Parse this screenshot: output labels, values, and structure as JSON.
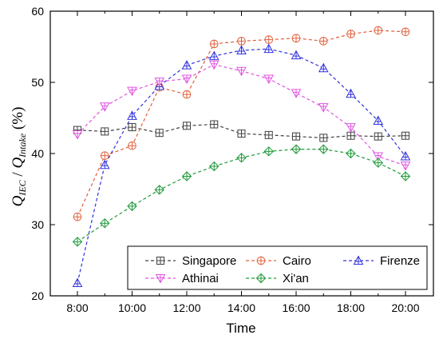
{
  "chart_data": {
    "type": "line",
    "xlabel": "Time",
    "ylabel": {
      "q1": "Q",
      "sub1": "IEC",
      "slash": " / ",
      "q2": "Q",
      "sub2": "Intake",
      "unit": " (%)"
    },
    "x": [
      "8:00",
      "9:00",
      "10:00",
      "11:00",
      "12:00",
      "13:00",
      "14:00",
      "15:00",
      "16:00",
      "17:00",
      "18:00",
      "19:00",
      "20:00"
    ],
    "x_ticks": [
      "8:00",
      "10:00",
      "12:00",
      "14:00",
      "16:00",
      "18:00",
      "20:00"
    ],
    "y_ticks": [
      "20",
      "30",
      "40",
      "50",
      "60"
    ],
    "ylim": [
      20,
      60
    ],
    "grid": false,
    "legend_position": "bottom-right",
    "series": [
      {
        "name": "Singapore",
        "color": "#404040",
        "marker": "square-cross",
        "values": [
          43.3,
          43.1,
          43.7,
          42.9,
          43.9,
          44.1,
          42.8,
          42.6,
          42.4,
          42.2,
          42.5,
          42.4,
          42.5
        ]
      },
      {
        "name": "Cairo",
        "color": "#e0603a",
        "marker": "circle-cross",
        "values": [
          31.1,
          39.7,
          41.1,
          49.3,
          48.3,
          55.4,
          55.8,
          56.0,
          56.2,
          55.8,
          56.8,
          57.3,
          57.1
        ]
      },
      {
        "name": "Firenze",
        "color": "#3333dd",
        "marker": "triangle-up-cross",
        "values": [
          21.8,
          38.4,
          45.3,
          49.5,
          52.4,
          53.7,
          54.5,
          54.7,
          53.8,
          52.0,
          48.4,
          44.6,
          39.6
        ]
      },
      {
        "name": "Athinai",
        "color": "#e055e0",
        "marker": "triangle-down-cross",
        "values": [
          42.7,
          46.6,
          48.8,
          50.1,
          50.5,
          52.5,
          51.6,
          50.5,
          48.5,
          46.5,
          43.7,
          39.6,
          38.3
        ]
      },
      {
        "name": "Xi'an",
        "color": "#1f9a3a",
        "marker": "diamond-cross",
        "values": [
          27.6,
          30.2,
          32.6,
          34.9,
          36.8,
          38.2,
          39.4,
          40.3,
          40.6,
          40.6,
          40.0,
          38.7,
          36.8
        ]
      }
    ]
  }
}
